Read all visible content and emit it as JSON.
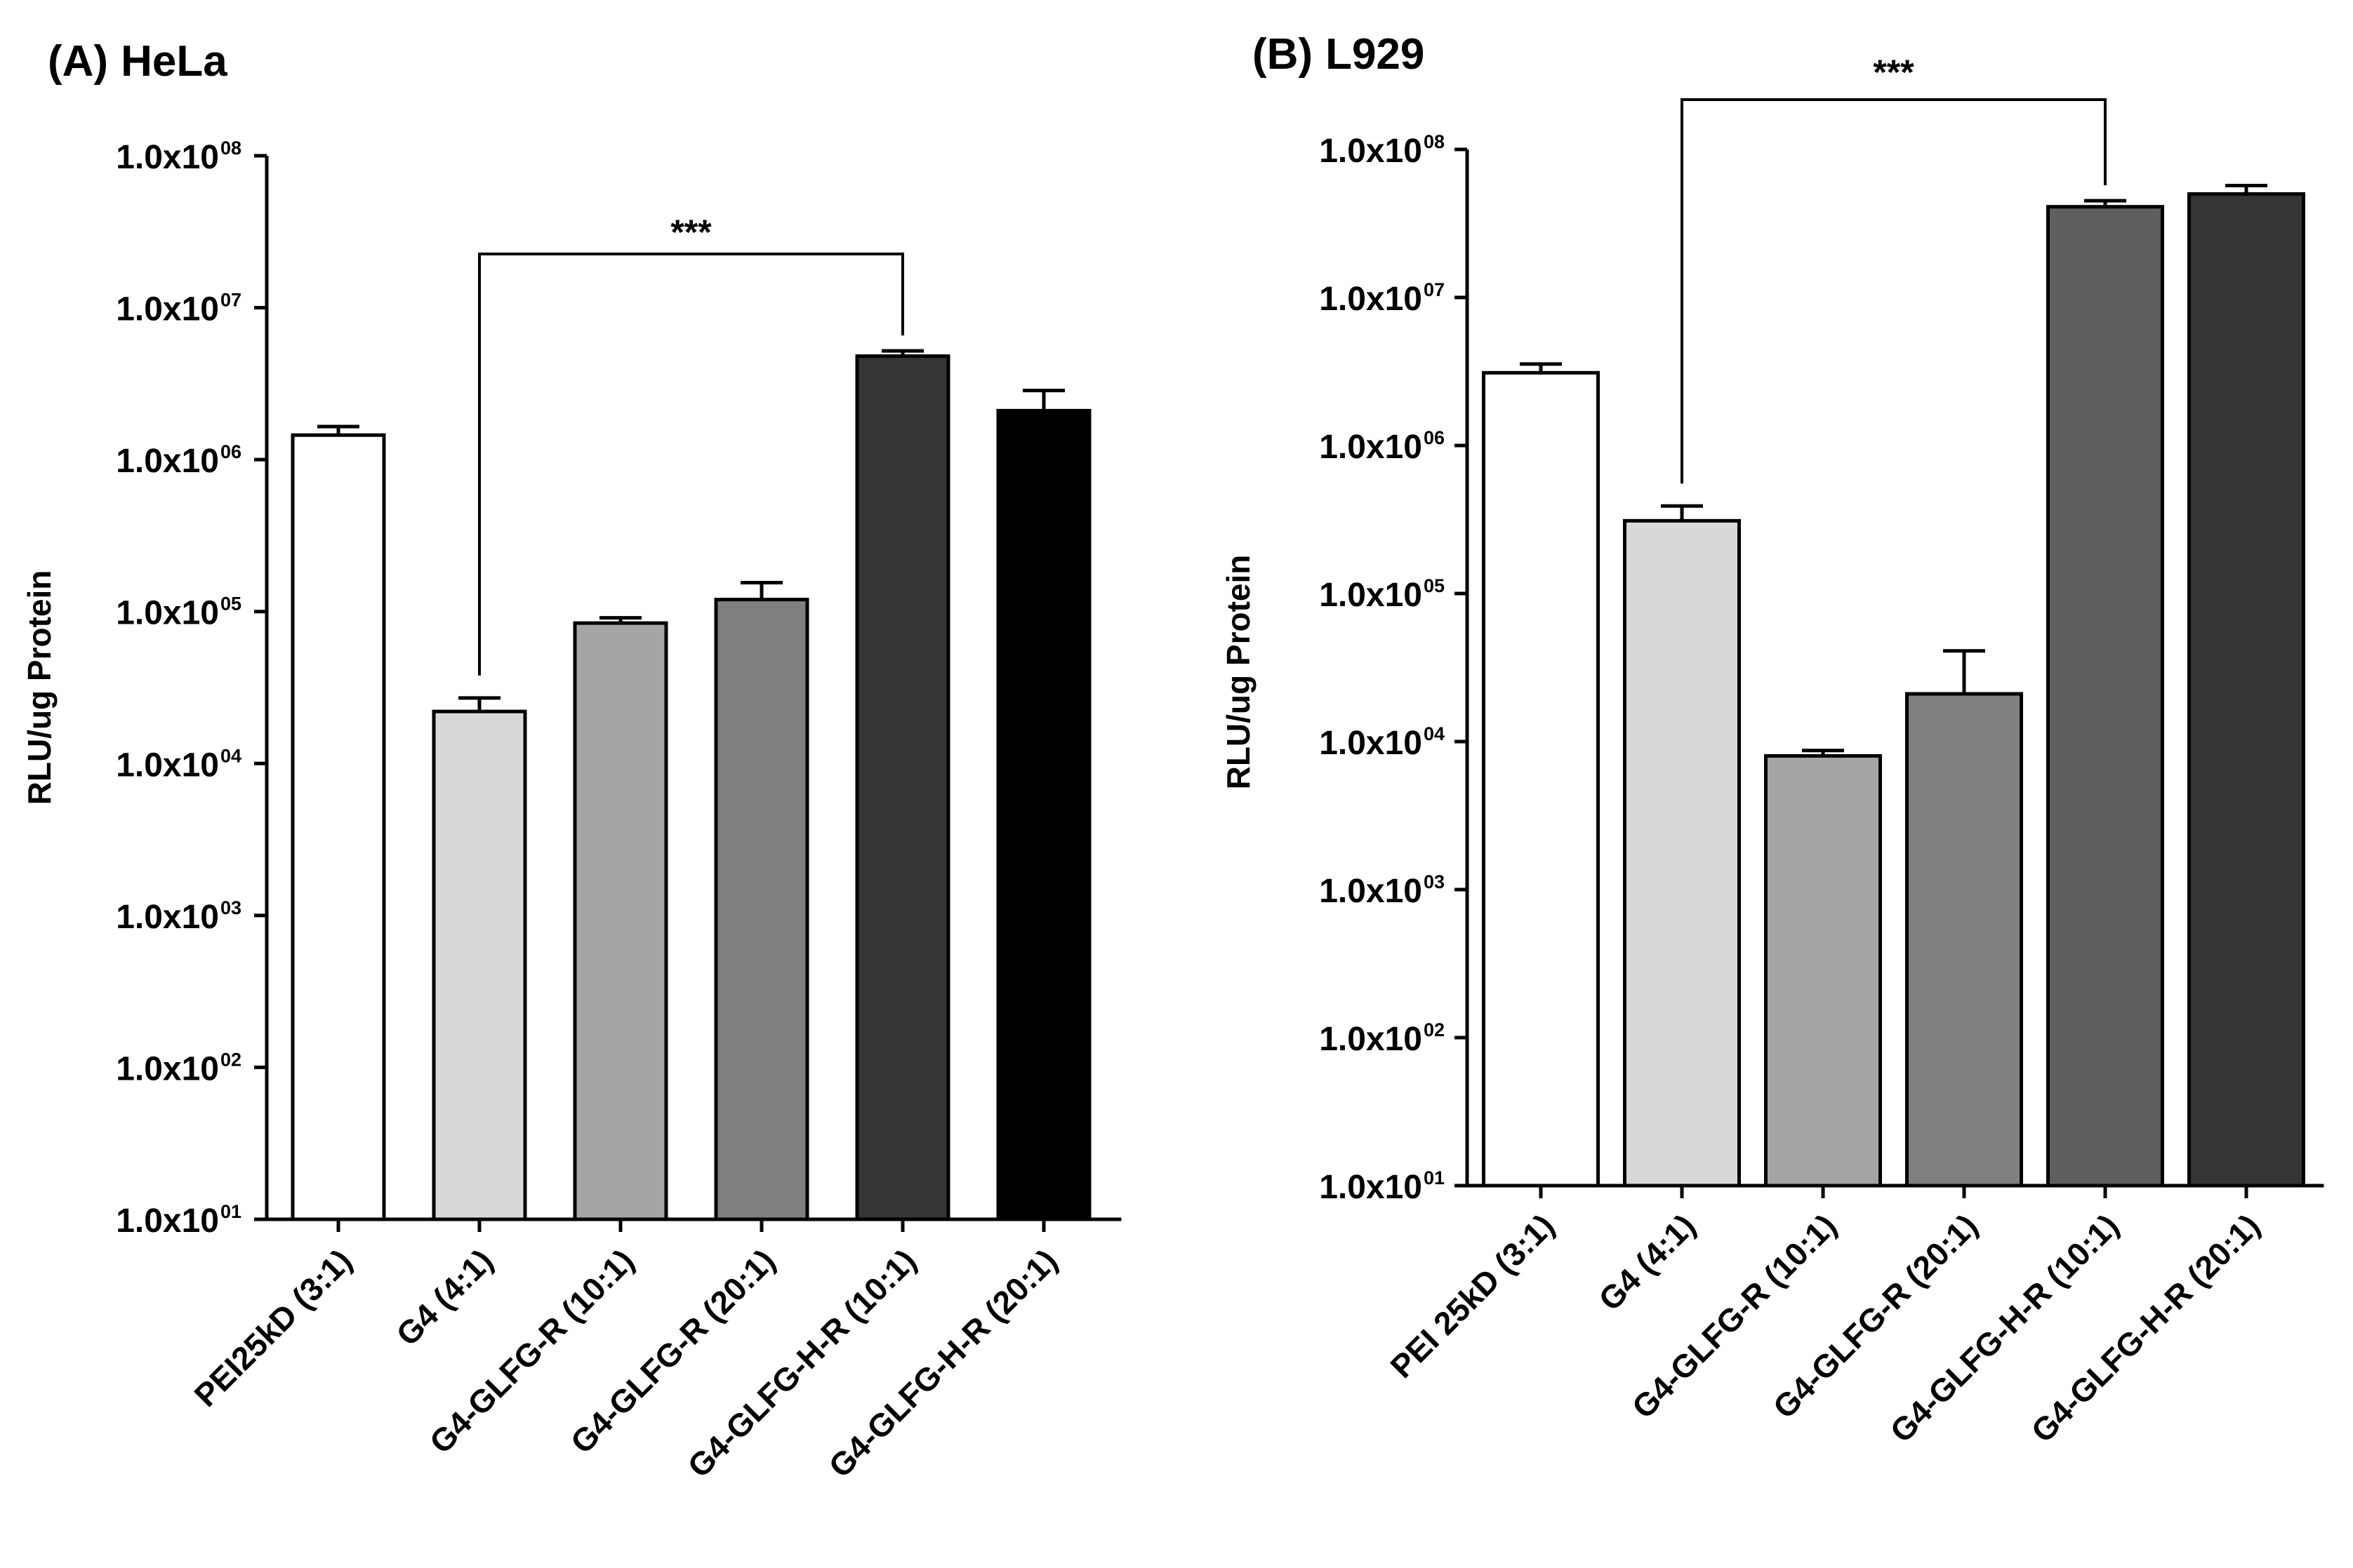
{
  "chart_data": [
    {
      "type": "bar",
      "panel": "(A)",
      "title": "HeLa",
      "ylabel": "RLU/ug Protein",
      "yscale": "log10",
      "ylim": [
        10,
        100000000
      ],
      "yticks": [
        {
          "base": "1.0x10",
          "exp": "01"
        },
        {
          "base": "1.0x10",
          "exp": "02"
        },
        {
          "base": "1.0x10",
          "exp": "03"
        },
        {
          "base": "1.0x10",
          "exp": "04"
        },
        {
          "base": "1.0x10",
          "exp": "05"
        },
        {
          "base": "1.0x10",
          "exp": "06"
        },
        {
          "base": "1.0x10",
          "exp": "07"
        },
        {
          "base": "1.0x10",
          "exp": "08"
        }
      ],
      "categories": [
        "PEI25kD (3:1)",
        "G4 (4:1)",
        "G4-GLFG-R (10:1)",
        "G4-GLFG-R (20:1)",
        "G4-GLFG-H-R (10:1)",
        "G4-GLFG-H-R (20:1)"
      ],
      "values": [
        1450000,
        22000,
        84000,
        120000,
        4800000,
        2100000
      ],
      "error_upper": [
        1650000,
        27000,
        91000,
        155000,
        5200000,
        2850000
      ],
      "fill_colors": [
        "#ffffff",
        "#d8d8d8",
        "#a5a5a8",
        "#7f7f7f",
        "#353535",
        "#000000"
      ],
      "significance": {
        "from": 1,
        "to": 4,
        "label": "***"
      }
    },
    {
      "type": "bar",
      "panel": "(B)",
      "title": "L929",
      "ylabel": "RLU/ug Protein",
      "yscale": "log10",
      "ylim": [
        10,
        100000000
      ],
      "yticks": [
        {
          "base": "1.0x10",
          "exp": "01"
        },
        {
          "base": "1.0x10",
          "exp": "02"
        },
        {
          "base": "1.0x10",
          "exp": "03"
        },
        {
          "base": "1.0x10",
          "exp": "04"
        },
        {
          "base": "1.0x10",
          "exp": "05"
        },
        {
          "base": "1.0x10",
          "exp": "06"
        },
        {
          "base": "1.0x10",
          "exp": "07"
        },
        {
          "base": "1.0x10",
          "exp": "08"
        }
      ],
      "categories": [
        "PEI 25kD (3:1)",
        "G4 (4:1)",
        "G4-GLFG-R (10:1)",
        "G4-GLFG-R (20:1)",
        "G4-GLFG-H-R (10:1)",
        "G4-GLFG-H-R (20:1)"
      ],
      "values": [
        3100000,
        310000,
        8000,
        21000,
        41000000,
        50000000
      ],
      "error_upper": [
        3550000,
        390000,
        8700,
        41000,
        45000000,
        57000000
      ],
      "fill_colors": [
        "#ffffff",
        "#d8d8d8",
        "#a5a5a8",
        "#7f7f7f",
        "#5e5e5e",
        "#353535"
      ],
      "significance": {
        "from": 1,
        "to": 4,
        "label": "***"
      }
    }
  ]
}
